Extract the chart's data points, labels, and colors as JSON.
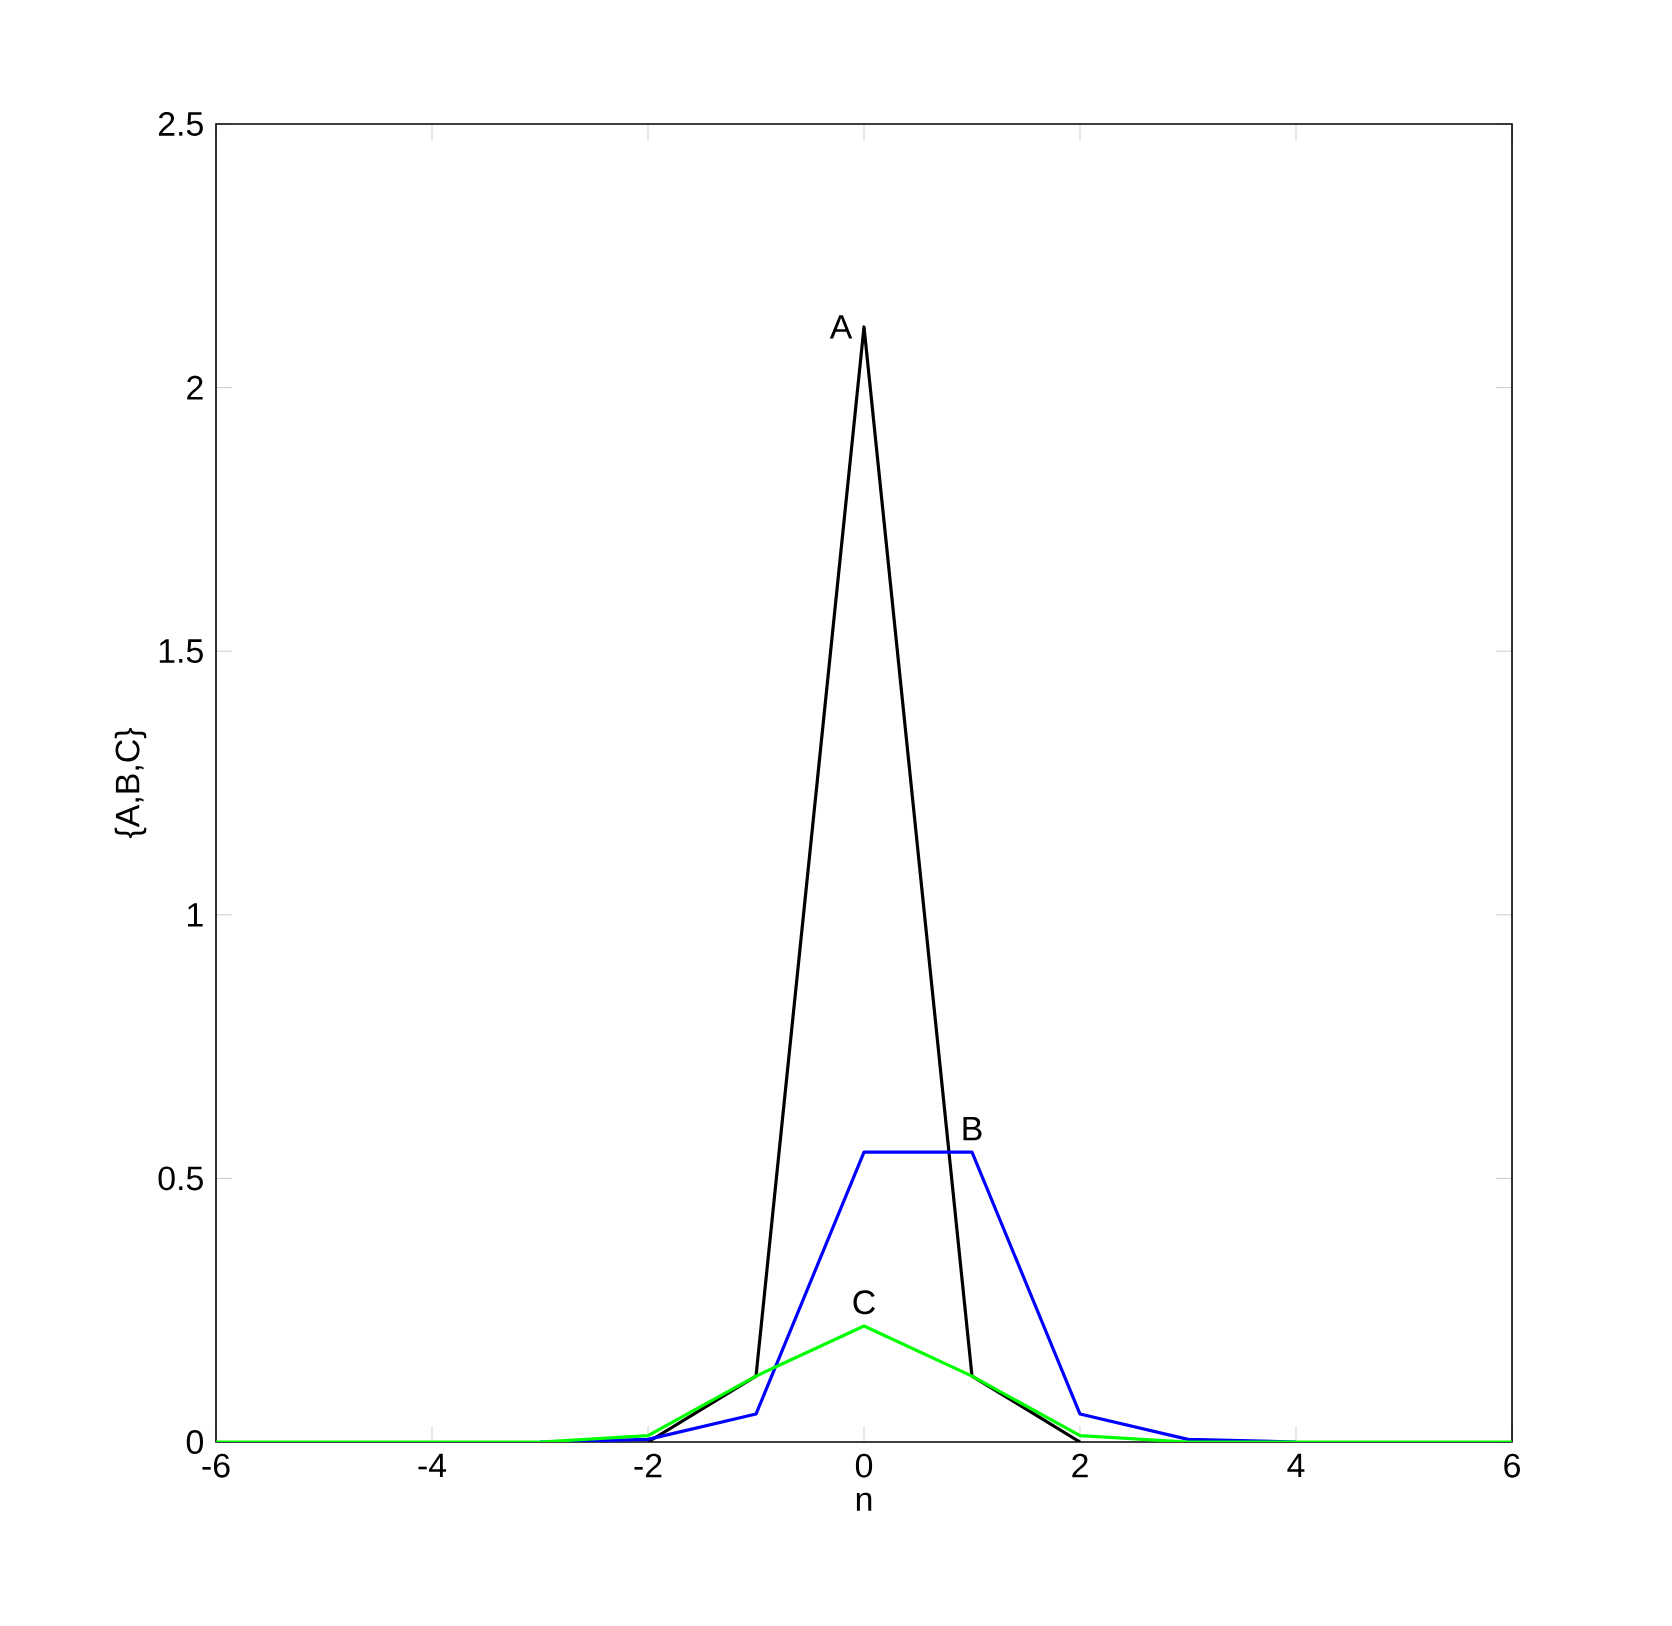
{
  "chart_data": {
    "type": "line",
    "xlabel": "n",
    "ylabel": "{A,B,C}",
    "x": [
      -6,
      -5,
      -4,
      -3,
      -2,
      -1,
      0,
      1,
      2,
      3,
      4,
      5,
      6
    ],
    "series": [
      {
        "color": "#000000",
        "values": [
          null,
          null,
          null,
          null,
          0,
          0.125,
          2.115,
          0.125,
          0,
          null,
          null,
          null,
          null
        ]
      },
      {
        "color": "#0000ff",
        "values": [
          null,
          null,
          null,
          0,
          0.005,
          0.053,
          0.55,
          0.55,
          0.053,
          0.005,
          0,
          null,
          null
        ]
      },
      {
        "color": "#00ff00",
        "values": [
          0,
          0,
          0,
          0,
          0.012,
          0.125,
          0.22,
          0.125,
          0.012,
          0,
          0,
          0,
          0
        ]
      }
    ],
    "xlim": [
      -6,
      6
    ],
    "ylim": [
      0,
      2.5
    ],
    "xticks": [
      -6,
      -4,
      -2,
      0,
      2,
      4,
      6
    ],
    "yticks": [
      0,
      0.5,
      1,
      1.5,
      2,
      2.5
    ],
    "grid": false,
    "marker": "none",
    "line_style": "solid",
    "annotations": [
      "A",
      "B",
      "C"
    ]
  }
}
